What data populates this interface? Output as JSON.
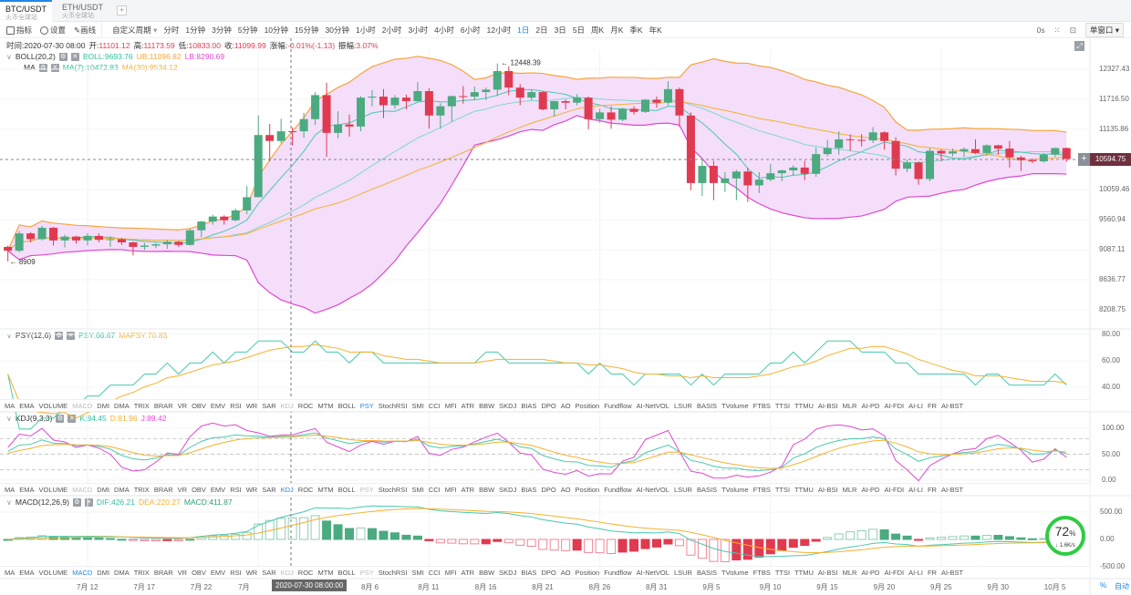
{
  "tabs": [
    {
      "symbol": "BTC/USDT",
      "exchange": "火币全球站",
      "active": true
    },
    {
      "symbol": "ETH/USDT",
      "exchange": "火币全球站",
      "active": false
    }
  ],
  "add_tab": "+",
  "toolbar": {
    "indicator": "指标",
    "settings": "设置",
    "draw": "画线",
    "custom_period": "自定义周期",
    "periods": [
      "分时",
      "1分钟",
      "3分钟",
      "5分钟",
      "10分钟",
      "15分钟",
      "30分钟",
      "1小时",
      "2小时",
      "3小时",
      "4小时",
      "6小时",
      "12小时",
      "1日",
      "2日",
      "3日",
      "5日",
      "周K",
      "月K",
      "季K",
      "年K"
    ],
    "active_period": "1日",
    "timer": "0s",
    "window_mode": "单窗口"
  },
  "info": {
    "time_label": "时间:",
    "time": "2020-07-30 08:00",
    "open_label": "开:",
    "open": "11101.12",
    "high_label": "高:",
    "high": "11173.59",
    "low_label": "低:",
    "low": "10833.00",
    "close_label": "收:",
    "close": "11099.99",
    "change_label": "涨幅:",
    "change": "-0.01%(-1.13)",
    "amp_label": "振幅:",
    "amp": "3.07%"
  },
  "boll": {
    "name": "BOLL(20,2)",
    "mid": "BOLL:9693.76",
    "ub": "UB:11096.82",
    "lb": "LB:8290.69"
  },
  "ma": {
    "name": "MA",
    "ma7": "MA(7):10472.83",
    "ma30": "MA(30):9534.12"
  },
  "psy": {
    "name": "PSY(12,6)",
    "psy": "PSY:66.67",
    "mapsy": "MAPSY:70.83"
  },
  "kdj": {
    "name": "KDJ(9,3,3)",
    "k": "K:84.45",
    "d": "D:81.96",
    "j": "J:89.42"
  },
  "macd": {
    "name": "MACD(12,26,9)",
    "dif": "DIF:426.21",
    "dea": "DEA:220.27",
    "macd": "MACD:411.87"
  },
  "indicator_tabs": [
    "MA",
    "EMA",
    "VOLUME",
    "MACD",
    "DMI",
    "DMA",
    "TRIX",
    "BRAR",
    "VR",
    "OBV",
    "EMV",
    "RSI",
    "WR",
    "SAR",
    "KDJ",
    "ROC",
    "MTM",
    "BOLL",
    "PSY",
    "StochRSI",
    "SMI",
    "CCI",
    "MFI",
    "ATR",
    "BBW",
    "SKDJ",
    "BIAS",
    "DPO",
    "AO",
    "Position",
    "Fundflow",
    "AI-NetVOL",
    "LSUR",
    "BASIS",
    "TVolume",
    "FTBS",
    "TTSI",
    "TTMU",
    "AI-BSI",
    "MLR",
    "AI-PD",
    "AI-FDI",
    "AI-LI",
    "FR",
    "AI-BST"
  ],
  "indicator_rows": [
    {
      "active": "PSY",
      "used": [
        "MACD",
        "KDJ"
      ]
    },
    {
      "active": "KDJ",
      "used": [
        "MACD",
        "PSY"
      ]
    },
    {
      "active": "MACD",
      "used": [
        "KDJ",
        "PSY"
      ]
    }
  ],
  "last_price": "10594.75",
  "crosshair_time": "2020-07-30 08:00:00",
  "gauge": {
    "percent": "72",
    "unit": "%",
    "speed": "↓ 1.6K/s"
  },
  "auto_label": "自动",
  "pct_label": "%",
  "colors": {
    "up": "#4caa80",
    "down": "#e03a50",
    "ub": "#f7a53b",
    "lb": "#e048d0",
    "mid": "#48c9b0",
    "ma7": "#48c9b0",
    "ma30": "#f5b12e",
    "band_fill": "#f4defa",
    "accent": "#1e88e5"
  },
  "chart_data": {
    "type": "candlestick",
    "scale": "log",
    "price_ticks": [
      "12327.43",
      "11716.50",
      "11135.86",
      "10594.75",
      "10059.46",
      "9560.94",
      "9087.11",
      "8636.77",
      "8208.75"
    ],
    "psy_ticks": [
      "80.00",
      "60.00",
      "40.00"
    ],
    "kdj_ticks": [
      "100.00",
      "50.00",
      "0.00"
    ],
    "macd_ticks": [
      "500.00",
      "0.00",
      "-500.00"
    ],
    "x_ticks": [
      {
        "label": "7月 12",
        "i": 7
      },
      {
        "label": "7月 17",
        "i": 12
      },
      {
        "label": "7月 22",
        "i": 17
      },
      {
        "label": "7月",
        "i": 22
      },
      {
        "label": "8月 6",
        "i": 32
      },
      {
        "label": "8月 11",
        "i": 37
      },
      {
        "label": "8月 16",
        "i": 42
      },
      {
        "label": "8月 21",
        "i": 47
      },
      {
        "label": "8月 26",
        "i": 52
      },
      {
        "label": "8月 31",
        "i": 57
      },
      {
        "label": "9月 5",
        "i": 62
      },
      {
        "label": "9月 10",
        "i": 67
      },
      {
        "label": "9月 15",
        "i": 72
      },
      {
        "label": "9月 20",
        "i": 77
      },
      {
        "label": "9月 25",
        "i": 82
      },
      {
        "label": "9月 30",
        "i": 87
      },
      {
        "label": "10月 5",
        "i": 92
      }
    ],
    "high_marker": "12448.39",
    "low_marker": "8909",
    "candles": [
      [
        "07-05",
        9130,
        9150,
        8909,
        9070
      ],
      [
        "07-06",
        9070,
        9380,
        9050,
        9340
      ],
      [
        "07-07",
        9340,
        9360,
        9200,
        9250
      ],
      [
        "07-08",
        9250,
        9460,
        9230,
        9430
      ],
      [
        "07-09",
        9430,
        9440,
        9150,
        9230
      ],
      [
        "07-10",
        9230,
        9320,
        9120,
        9290
      ],
      [
        "07-11",
        9290,
        9300,
        9180,
        9230
      ],
      [
        "07-12",
        9230,
        9340,
        9150,
        9300
      ],
      [
        "07-13",
        9300,
        9340,
        9200,
        9240
      ],
      [
        "07-14",
        9240,
        9290,
        9130,
        9250
      ],
      [
        "07-15",
        9250,
        9270,
        9160,
        9200
      ],
      [
        "07-16",
        9200,
        9210,
        9000,
        9130
      ],
      [
        "07-17",
        9130,
        9190,
        9080,
        9150
      ],
      [
        "07-18",
        9150,
        9190,
        9110,
        9170
      ],
      [
        "07-19",
        9170,
        9240,
        9100,
        9210
      ],
      [
        "07-20",
        9210,
        9220,
        9130,
        9160
      ],
      [
        "07-21",
        9160,
        9420,
        9150,
        9390
      ],
      [
        "07-22",
        9390,
        9540,
        9280,
        9530
      ],
      [
        "07-23",
        9530,
        9640,
        9480,
        9610
      ],
      [
        "07-24",
        9610,
        9630,
        9480,
        9550
      ],
      [
        "07-25",
        9550,
        9740,
        9530,
        9710
      ],
      [
        "07-26",
        9710,
        10120,
        9650,
        9930
      ],
      [
        "07-27",
        9930,
        11400,
        9930,
        11030
      ],
      [
        "07-28",
        11030,
        11240,
        10550,
        10920
      ],
      [
        "07-29",
        10920,
        11340,
        10880,
        11100
      ],
      [
        "07-30",
        11101.12,
        11173.59,
        10833,
        11099.99
      ],
      [
        "07-31",
        11100,
        11450,
        10980,
        11330
      ],
      [
        "08-01",
        11330,
        11860,
        11220,
        11800
      ],
      [
        "08-02",
        11800,
        12050,
        10630,
        11070
      ],
      [
        "08-03",
        11070,
        11480,
        10970,
        11230
      ],
      [
        "08-04",
        11230,
        11420,
        11000,
        11190
      ],
      [
        "08-05",
        11190,
        11780,
        11100,
        11750
      ],
      [
        "08-06",
        11750,
        11900,
        11580,
        11770
      ],
      [
        "08-07",
        11770,
        11920,
        11350,
        11600
      ],
      [
        "08-08",
        11600,
        11800,
        11530,
        11750
      ],
      [
        "08-09",
        11750,
        11810,
        11520,
        11680
      ],
      [
        "08-10",
        11680,
        12060,
        11670,
        11880
      ],
      [
        "08-11",
        11880,
        11940,
        11150,
        11400
      ],
      [
        "08-12",
        11400,
        11640,
        11150,
        11580
      ],
      [
        "08-13",
        11580,
        11790,
        11280,
        11780
      ],
      [
        "08-14",
        11780,
        11980,
        11630,
        11770
      ],
      [
        "08-15",
        11770,
        11970,
        11700,
        11860
      ],
      [
        "08-16",
        11860,
        11950,
        11700,
        11910
      ],
      [
        "08-17",
        11910,
        12448.39,
        11780,
        12290
      ],
      [
        "08-18",
        12290,
        12390,
        11800,
        11950
      ],
      [
        "08-19",
        11950,
        12020,
        11600,
        11750
      ],
      [
        "08-20",
        11750,
        11900,
        11700,
        11860
      ],
      [
        "08-21",
        11860,
        11880,
        11500,
        11520
      ],
      [
        "08-22",
        11520,
        11690,
        11380,
        11680
      ],
      [
        "08-23",
        11680,
        11710,
        11520,
        11650
      ],
      [
        "08-24",
        11650,
        11820,
        11600,
        11750
      ],
      [
        "08-25",
        11750,
        11770,
        11140,
        11330
      ],
      [
        "08-26",
        11330,
        11530,
        11260,
        11460
      ],
      [
        "08-27",
        11460,
        11580,
        11150,
        11320
      ],
      [
        "08-28",
        11320,
        11550,
        11290,
        11530
      ],
      [
        "08-29",
        11530,
        11580,
        11420,
        11470
      ],
      [
        "08-30",
        11470,
        11720,
        11450,
        11710
      ],
      [
        "08-31",
        11710,
        11770,
        11550,
        11650
      ],
      [
        "09-01",
        11650,
        12080,
        11600,
        11920
      ],
      [
        "09-02",
        11920,
        11950,
        11180,
        11400
      ],
      [
        "09-03",
        11400,
        11460,
        10050,
        10170
      ],
      [
        "09-04",
        10170,
        10600,
        9950,
        10470
      ],
      [
        "09-05",
        10470,
        10560,
        9880,
        10170
      ],
      [
        "09-06",
        10170,
        10360,
        10020,
        10250
      ],
      [
        "09-07",
        10250,
        10400,
        9880,
        10370
      ],
      [
        "09-08",
        10370,
        10440,
        9850,
        10130
      ],
      [
        "09-09",
        10130,
        10360,
        10000,
        10230
      ],
      [
        "09-10",
        10230,
        10500,
        10200,
        10340
      ],
      [
        "09-11",
        10340,
        10400,
        10200,
        10390
      ],
      [
        "09-12",
        10390,
        10480,
        10300,
        10440
      ],
      [
        "09-13",
        10440,
        10560,
        10220,
        10330
      ],
      [
        "09-14",
        10330,
        10800,
        10280,
        10680
      ],
      [
        "09-15",
        10680,
        10940,
        10640,
        10790
      ],
      [
        "09-16",
        10790,
        11100,
        10670,
        10950
      ],
      [
        "09-17",
        10950,
        11040,
        10740,
        10940
      ],
      [
        "09-18",
        10940,
        11050,
        10820,
        10930
      ],
      [
        "09-19",
        10930,
        11180,
        10880,
        11080
      ],
      [
        "09-20",
        11080,
        11100,
        10760,
        10920
      ],
      [
        "09-21",
        10920,
        10990,
        10300,
        10420
      ],
      [
        "09-22",
        10420,
        10580,
        10360,
        10530
      ],
      [
        "09-23",
        10530,
        10550,
        10140,
        10240
      ],
      [
        "09-24",
        10240,
        10790,
        10200,
        10740
      ],
      [
        "09-25",
        10740,
        10770,
        10550,
        10690
      ],
      [
        "09-26",
        10690,
        10780,
        10640,
        10730
      ],
      [
        "09-27",
        10730,
        10800,
        10630,
        10770
      ],
      [
        "09-28",
        10770,
        10950,
        10680,
        10700
      ],
      [
        "09-29",
        10700,
        10860,
        10650,
        10840
      ],
      [
        "09-30",
        10840,
        10850,
        10670,
        10780
      ],
      [
        "10-01",
        10780,
        10920,
        10440,
        10620
      ],
      [
        "10-02",
        10620,
        10650,
        10380,
        10570
      ],
      [
        "10-03",
        10570,
        10600,
        10520,
        10550
      ],
      [
        "10-04",
        10550,
        10700,
        10530,
        10670
      ],
      [
        "10-05",
        10670,
        10800,
        10630,
        10790
      ],
      [
        "10-06",
        10790,
        10800,
        10540,
        10594.75
      ]
    ]
  }
}
